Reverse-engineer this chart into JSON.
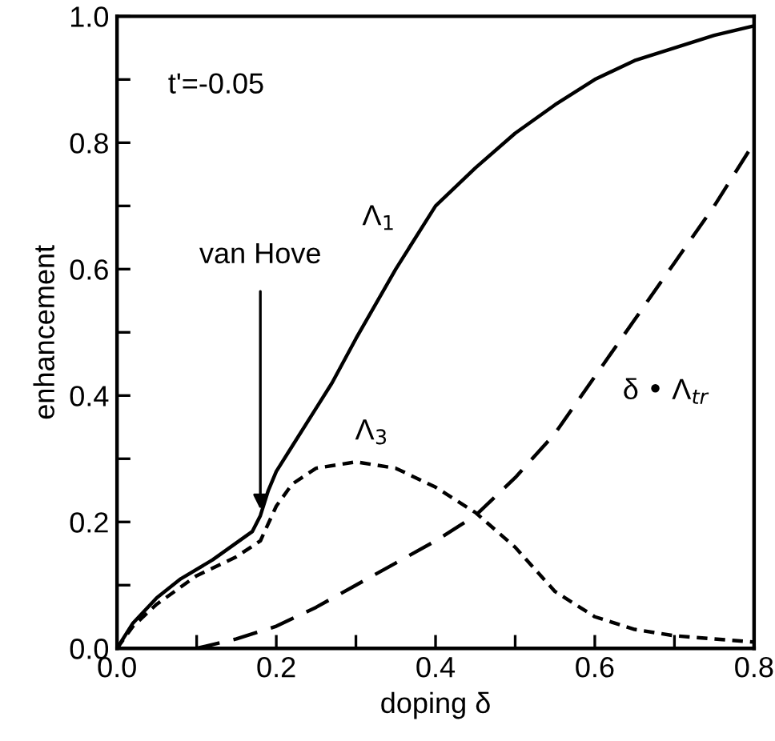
{
  "chart_data": {
    "type": "line",
    "xlabel": "doping δ",
    "ylabel": "enhancement",
    "xlim": [
      0,
      0.8
    ],
    "ylim": [
      0,
      1.0
    ],
    "xticks": [
      {
        "value": 0.0,
        "label": "0.0"
      },
      {
        "value": 0.1,
        "label": null
      },
      0.2,
      {
        "value": 0.3,
        "label": null
      },
      0.4,
      {
        "value": 0.5,
        "label": null
      },
      0.6,
      {
        "value": 0.7,
        "label": null
      },
      0.8
    ],
    "yticks": [
      {
        "value": 0.0,
        "label": "0.0"
      },
      {
        "value": 0.1,
        "label": null
      },
      0.2,
      {
        "value": 0.3,
        "label": null
      },
      0.4,
      {
        "value": 0.5,
        "label": null
      },
      0.6,
      {
        "value": 0.7,
        "label": null
      },
      0.8,
      {
        "value": 0.9,
        "label": null
      },
      {
        "value": 1.0,
        "label": "1.0"
      }
    ],
    "grid": false,
    "legend": false,
    "marker": "none",
    "series": [
      {
        "name": "Λ$_{1}$",
        "color": "#000000",
        "line_style": "solid",
        "x": [
          0,
          0.02,
          0.05,
          0.08,
          0.12,
          0.17,
          0.18,
          0.19,
          0.2,
          0.22,
          0.25,
          0.27,
          0.3,
          0.35,
          0.4,
          0.45,
          0.5,
          0.55,
          0.6,
          0.65,
          0.7,
          0.75,
          0.8
        ],
        "values": [
          0,
          0.04,
          0.08,
          0.11,
          0.14,
          0.185,
          0.21,
          0.25,
          0.28,
          0.32,
          0.38,
          0.42,
          0.49,
          0.6,
          0.7,
          0.76,
          0.815,
          0.86,
          0.9,
          0.93,
          0.95,
          0.97,
          0.985
        ]
      },
      {
        "name": "Λ$_{3}$",
        "color": "#000000",
        "line_style": "dotted",
        "x": [
          0,
          0.02,
          0.05,
          0.1,
          0.15,
          0.18,
          0.2,
          0.22,
          0.25,
          0.3,
          0.35,
          0.4,
          0.45,
          0.5,
          0.55,
          0.6,
          0.65,
          0.7,
          0.8
        ],
        "values": [
          0,
          0.035,
          0.07,
          0.115,
          0.145,
          0.17,
          0.225,
          0.26,
          0.285,
          0.295,
          0.285,
          0.255,
          0.215,
          0.16,
          0.09,
          0.05,
          0.03,
          0.02,
          0.01
        ]
      },
      {
        "name": "δ • Λ$_{tr}$",
        "color": "#000000",
        "line_style": "dashed",
        "x": [
          0,
          0.1,
          0.15,
          0.2,
          0.25,
          0.3,
          0.35,
          0.4,
          0.45,
          0.5,
          0.55,
          0.6,
          0.65,
          0.7,
          0.75,
          0.8
        ],
        "values": [
          0,
          0.0,
          0.015,
          0.035,
          0.065,
          0.1,
          0.135,
          0.17,
          0.21,
          0.27,
          0.34,
          0.43,
          0.52,
          0.61,
          0.7,
          0.8
        ]
      }
    ],
    "annotations": [
      "t'=-0.05",
      {
        "text": "van Hove",
        "x": 0.18,
        "y": 0.22
      }
    ]
  }
}
